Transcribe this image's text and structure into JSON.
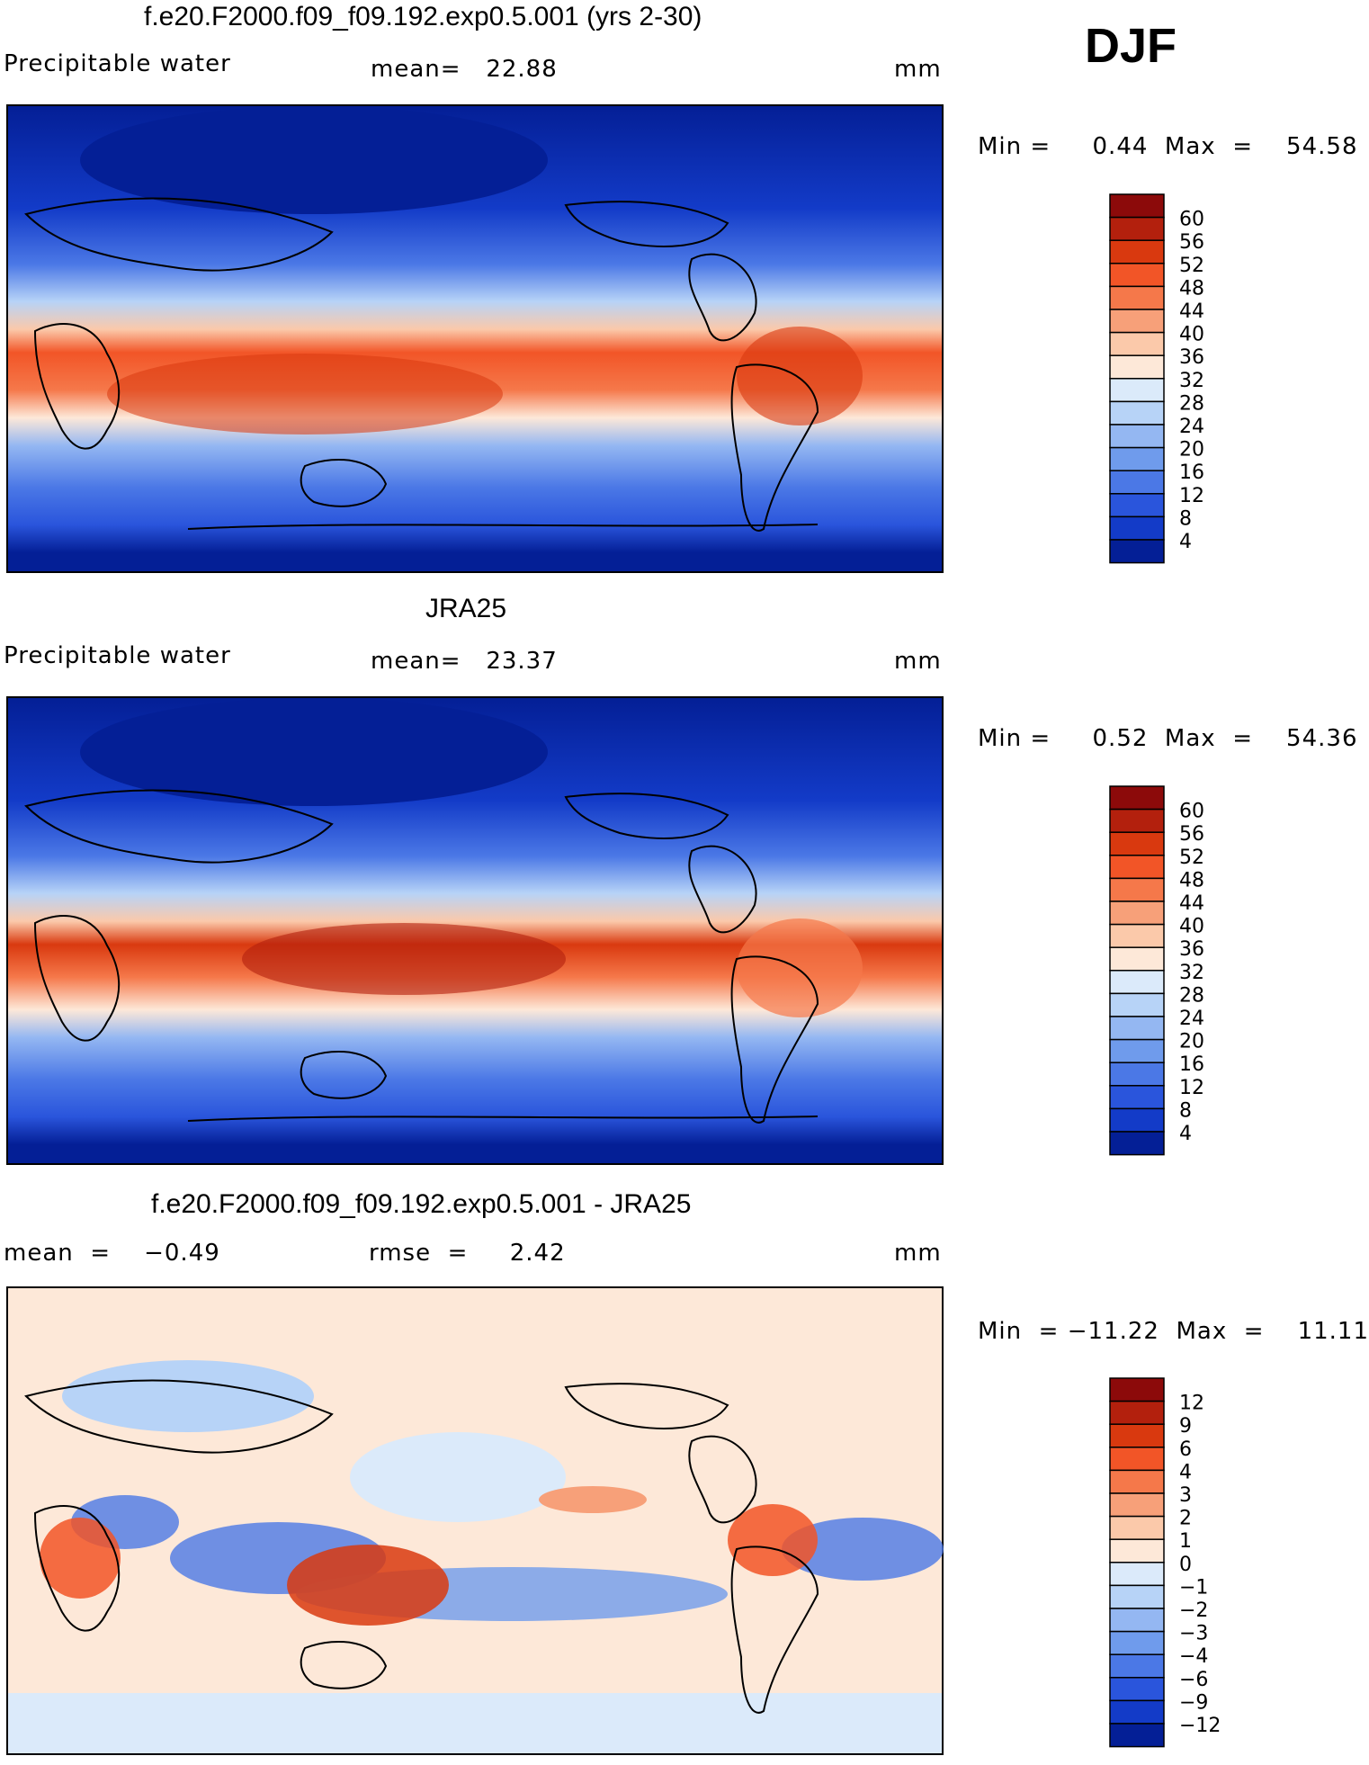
{
  "season": "DJF",
  "panels": [
    {
      "title": "f.e20.F2000.f09_f09.192.exp0.5.001 (yrs 2-30)",
      "left": "Precipitable water",
      "middle": "mean=   22.88",
      "units": "mm",
      "minmax": "Min =     0.44  Max  =    54.58"
    },
    {
      "title": "JRA25",
      "left": "Precipitable water",
      "middle": "mean=   23.37",
      "units": "mm",
      "minmax": "Min =     0.52  Max  =    54.36"
    },
    {
      "title": "f.e20.F2000.f09_f09.192.exp0.5.001 - JRA25",
      "left": "mean  =    −0.49",
      "middle": "rmse  =     2.42",
      "units": "mm",
      "minmax": "Min  = −11.22  Max  =    11.11"
    }
  ],
  "colorbars": {
    "absolute": {
      "labels": [
        "60",
        "56",
        "52",
        "48",
        "44",
        "40",
        "36",
        "32",
        "28",
        "24",
        "20",
        "16",
        "12",
        "8",
        "4"
      ],
      "colors": [
        "#8c0a0a",
        "#b3200d",
        "#d9390f",
        "#f25527",
        "#f5784a",
        "#f7a079",
        "#fbc9aa",
        "#fde8d8",
        "#dbeafa",
        "#b7d3f7",
        "#94b7f2",
        "#6f9bec",
        "#4b78e6",
        "#2a55dc",
        "#133bc8",
        "#041f96"
      ]
    },
    "difference": {
      "labels": [
        "12",
        "9",
        "6",
        "4",
        "3",
        "2",
        "1",
        "0",
        "−1",
        "−2",
        "−3",
        "−4",
        "−6",
        "−9",
        "−12"
      ],
      "colors": [
        "#8c0a0a",
        "#b3200d",
        "#d9390f",
        "#f25527",
        "#f5784a",
        "#f7a079",
        "#fbc9aa",
        "#fde8d8",
        "#dbeafa",
        "#b7d3f7",
        "#94b7f2",
        "#6f9bec",
        "#4b78e6",
        "#2a55dc",
        "#133bc8",
        "#041f96"
      ]
    }
  },
  "chart_data": [
    {
      "type": "heatmap",
      "title": "f.e20.F2000.f09_f09.192.exp0.5.001 (yrs 2-30)",
      "variable": "Precipitable water",
      "units": "mm",
      "mean": 22.88,
      "min": 0.44,
      "max": 54.58,
      "contour_levels": [
        4,
        8,
        12,
        16,
        20,
        24,
        28,
        32,
        36,
        40,
        44,
        48,
        52,
        56,
        60
      ]
    },
    {
      "type": "heatmap",
      "title": "JRA25",
      "variable": "Precipitable water",
      "units": "mm",
      "mean": 23.37,
      "min": 0.52,
      "max": 54.36,
      "contour_levels": [
        4,
        8,
        12,
        16,
        20,
        24,
        28,
        32,
        36,
        40,
        44,
        48,
        52,
        56,
        60
      ]
    },
    {
      "type": "heatmap",
      "title": "f.e20.F2000.f09_f09.192.exp0.5.001 - JRA25",
      "units": "mm",
      "mean": -0.49,
      "rmse": 2.42,
      "min": -11.22,
      "max": 11.11,
      "contour_levels": [
        -12,
        -9,
        -6,
        -4,
        -3,
        -2,
        -1,
        0,
        1,
        2,
        3,
        4,
        6,
        9,
        12
      ]
    }
  ]
}
